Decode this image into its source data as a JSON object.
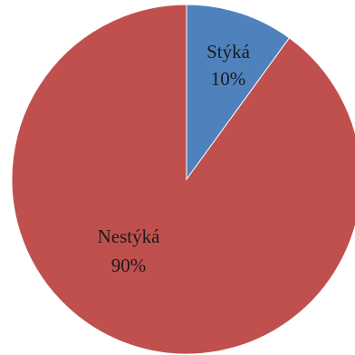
{
  "chart_data": {
    "type": "pie",
    "start_angle_deg": 0,
    "direction": "clockwise",
    "slices": [
      {
        "label": "Stýká",
        "value": 10,
        "value_label": "10%",
        "color": "#4f81bd"
      },
      {
        "label": "Nestýká",
        "value": 90,
        "value_label": "90%",
        "color": "#c0504d"
      }
    ]
  }
}
